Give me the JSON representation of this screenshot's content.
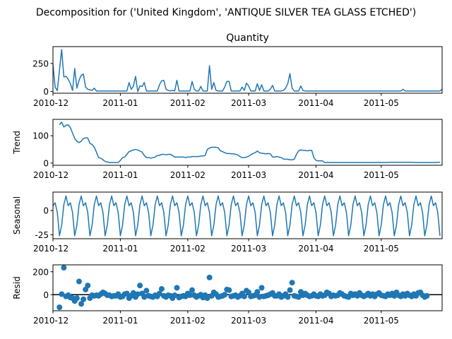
{
  "figure": {
    "suptitle": "Decomposition for ('United Kingdom', 'ANTIQUE SILVER TEA GLASS ETCHED')"
  },
  "chart_data": [
    {
      "type": "line",
      "panel": "observed",
      "title": "Quantity",
      "ylabel": "",
      "color": "#1f77b4",
      "x_start": "2010-12-01",
      "x_step_days": 1,
      "xlim": [
        "2010-12-01",
        "2011-05-29"
      ],
      "ylim": [
        -15,
        400
      ],
      "yticks": [
        0,
        250
      ],
      "xticks": [
        "2010-12",
        "2011-01",
        "2011-02",
        "2011-03",
        "2011-04",
        "2011-05"
      ],
      "values": [
        240,
        40,
        8,
        190,
        375,
        130,
        135,
        110,
        70,
        10,
        205,
        30,
        100,
        145,
        155,
        40,
        20,
        15,
        10,
        30,
        5,
        5,
        5,
        5,
        5,
        5,
        5,
        5,
        5,
        5,
        5,
        5,
        5,
        5,
        5,
        80,
        20,
        50,
        135,
        0,
        50,
        45,
        80,
        5,
        5,
        5,
        5,
        5,
        5,
        60,
        95,
        100,
        20,
        10,
        5,
        10,
        5,
        100,
        5,
        5,
        5,
        5,
        5,
        5,
        90,
        20,
        5,
        5,
        45,
        5,
        5,
        5,
        230,
        20,
        80,
        10,
        5,
        5,
        5,
        40,
        90,
        90,
        5,
        5,
        5,
        5,
        5,
        40,
        10,
        75,
        50,
        5,
        5,
        5,
        70,
        10,
        60,
        5,
        5,
        5,
        20,
        55,
        5,
        5,
        5,
        5,
        10,
        30,
        70,
        160,
        30,
        5,
        5,
        5,
        50,
        10,
        5,
        5,
        5,
        5,
        5,
        5,
        5,
        5,
        5,
        5,
        5,
        5,
        5,
        5,
        5,
        5,
        5,
        5,
        5,
        5,
        5,
        5,
        5,
        5,
        5,
        5,
        5,
        5,
        5,
        5,
        5,
        5,
        5,
        5,
        5,
        5,
        5,
        5,
        5,
        5,
        5,
        5,
        5,
        5,
        5,
        20,
        5,
        5,
        5,
        5,
        5,
        5,
        5,
        5,
        5,
        5,
        5,
        5,
        5,
        5,
        5,
        5,
        5,
        20
      ]
    },
    {
      "type": "line",
      "panel": "trend",
      "title": "",
      "ylabel": "Trend",
      "color": "#1f77b4",
      "x_start": "2010-12-01",
      "x_step_days": 1,
      "xlim": [
        "2010-12-01",
        "2011-05-29"
      ],
      "ylim": [
        -8,
        160
      ],
      "yticks": [
        0,
        100
      ],
      "xticks": [
        "2010-12",
        "2011-01",
        "2011-02",
        "2011-03",
        "2011-04",
        "2011-05"
      ],
      "values": [
        null,
        null,
        null,
        140,
        150,
        132,
        138,
        140,
        130,
        110,
        90,
        80,
        75,
        80,
        90,
        92,
        92,
        72,
        68,
        58,
        40,
        20,
        18,
        12,
        6,
        4,
        2,
        2,
        2,
        2,
        2,
        10,
        20,
        22,
        32,
        42,
        45,
        48,
        50,
        48,
        44,
        40,
        28,
        20,
        20,
        18,
        20,
        22,
        28,
        28,
        32,
        32,
        30,
        32,
        32,
        28,
        22,
        22,
        22,
        22,
        22,
        20,
        22,
        22,
        24,
        24,
        24,
        24,
        26,
        26,
        28,
        50,
        55,
        58,
        58,
        58,
        56,
        45,
        42,
        38,
        35,
        35,
        34,
        34,
        32,
        30,
        24,
        20,
        20,
        22,
        25,
        30,
        35,
        38,
        44,
        38,
        36,
        35,
        34,
        35,
        34,
        22,
        22,
        24,
        22,
        20,
        15,
        14,
        14,
        12,
        12,
        14,
        32,
        45,
        48,
        47,
        46,
        45,
        46,
        47,
        20,
        10,
        8,
        8,
        8,
        2,
        2,
        2,
        2,
        2,
        2,
        2,
        2,
        2,
        2,
        2,
        2,
        2,
        2,
        2,
        2,
        2,
        2,
        2,
        2,
        2,
        2,
        2,
        2,
        2,
        2,
        2,
        2,
        2,
        2,
        3,
        3,
        3,
        3,
        3,
        3,
        3,
        3,
        3,
        3,
        3,
        2,
        2,
        2,
        2,
        2,
        2,
        2,
        2,
        2,
        2,
        2,
        3,
        3,
        null,
        null,
        null
      ]
    },
    {
      "type": "line",
      "panel": "seasonal",
      "title": "",
      "ylabel": "Seasonal",
      "color": "#1f77b4",
      "x_start": "2010-12-01",
      "x_step_days": 1,
      "xlim": [
        "2010-12-01",
        "2011-05-29"
      ],
      "ylim": [
        -29,
        19
      ],
      "yticks": [
        -25,
        0
      ],
      "xticks": [
        "2010-12",
        "2011-01",
        "2011-02",
        "2011-03",
        "2011-04",
        "2011-05"
      ],
      "period": 7,
      "pattern": [
        5,
        8,
        -2,
        -26,
        -15,
        6,
        15
      ],
      "start_phase": 0,
      "count": 179
    },
    {
      "type": "scatter",
      "panel": "resid",
      "title": "",
      "ylabel": "Resid",
      "color": "#1f77b4",
      "baseline": 0,
      "x_start": "2010-12-01",
      "x_step_days": 1,
      "xlim": [
        "2010-12-01",
        "2011-05-29"
      ],
      "ylim": [
        -140,
        260
      ],
      "yticks": [
        0,
        200
      ],
      "xticks": [
        "2010-12",
        "2011-01",
        "2011-02",
        "2011-03",
        "2011-04",
        "2011-05"
      ],
      "values": [
        null,
        null,
        null,
        -110,
        5,
        235,
        -15,
        -5,
        -25,
        -30,
        -55,
        -30,
        115,
        -80,
        -40,
        45,
        80,
        -30,
        -5,
        -10,
        -5,
        -10,
        5,
        20,
        10,
        -5,
        -5,
        -15,
        -10,
        -10,
        5,
        -20,
        -15,
        5,
        10,
        -30,
        -10,
        15,
        -20,
        5,
        80,
        10,
        -20,
        35,
        -10,
        -15,
        -20,
        -5,
        -15,
        10,
        50,
        -10,
        -20,
        -5,
        -10,
        -30,
        -5,
        60,
        -25,
        -15,
        -10,
        -15,
        10,
        -5,
        40,
        -5,
        -20,
        -10,
        0,
        -25,
        -5,
        -30,
        150,
        -10,
        20,
        5,
        -20,
        -15,
        -10,
        0,
        45,
        40,
        -15,
        -10,
        -5,
        -20,
        -10,
        10,
        -15,
        35,
        20,
        -15,
        -10,
        -5,
        25,
        -20,
        60,
        -15,
        -10,
        -5,
        5,
        15,
        -10,
        -10,
        5,
        -20,
        -10,
        5,
        -20,
        40,
        105,
        -10,
        -15,
        -20,
        25,
        -5,
        10,
        -5,
        -15,
        -10,
        5,
        -10,
        -15,
        5,
        -10,
        -5,
        20,
        10,
        -15,
        -5,
        -10,
        -5,
        15,
        5,
        -10,
        -15,
        -20,
        10,
        -5,
        5,
        -10,
        15,
        -5,
        -15,
        -5,
        10,
        -10,
        5,
        -15,
        5,
        15,
        -5,
        -10,
        -15,
        5,
        -5,
        10,
        -10,
        20,
        -5,
        -15,
        5,
        -10,
        10,
        -5,
        -15,
        5,
        -10,
        15,
        20,
        -5,
        -20,
        -10,
        null,
        null,
        null
      ]
    }
  ]
}
